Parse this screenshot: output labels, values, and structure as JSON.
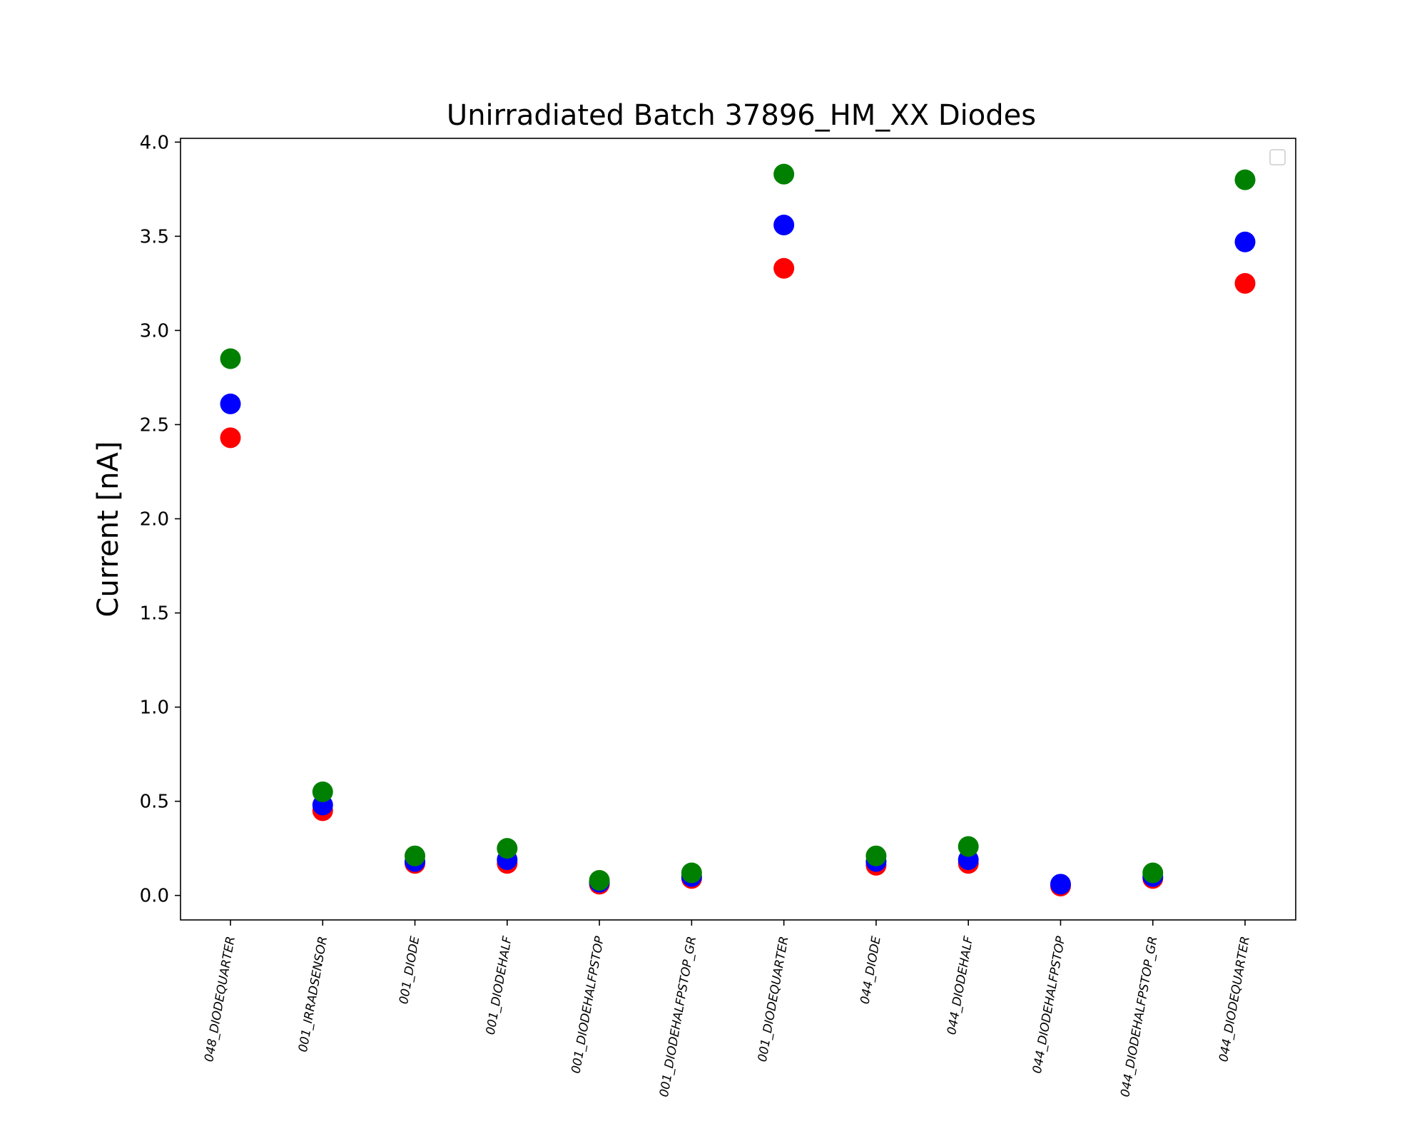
{
  "chart_data": {
    "type": "scatter",
    "title": "Unirradiated Batch 37896_HM_XX Diodes",
    "ylabel": "Current [nA]",
    "xlabel": "",
    "ylim": [
      -0.13,
      4.02
    ],
    "yticks": [
      "0.0",
      "0.5",
      "1.0",
      "1.5",
      "2.0",
      "2.5",
      "3.0",
      "3.5",
      "4.0"
    ],
    "ytick_values": [
      0,
      0.5,
      1.0,
      1.5,
      2.0,
      2.5,
      3.0,
      3.5,
      4.0
    ],
    "grid": false,
    "legend": "top-right (empty)",
    "categories": [
      "048_DIODEQUARTER",
      "001_IRRADSENSOR",
      "001_DIODE",
      "001_DIODEHALF",
      "001_DIODEHALFPSTOP",
      "001_DIODEHALFPSTOP_GR",
      "001_DIODEQUARTER",
      "044_DIODE",
      "044_DIODEHALF",
      "044_DIODEHALFPSTOP",
      "044_DIODEHALFPSTOP_GR",
      "044_DIODEQUARTER"
    ],
    "series": [
      {
        "color": "#ff0000",
        "values": [
          2.43,
          0.45,
          0.17,
          0.17,
          0.06,
          0.09,
          3.33,
          0.16,
          0.17,
          0.05,
          0.09,
          3.25
        ]
      },
      {
        "color": "#0000ff",
        "values": [
          2.61,
          0.48,
          0.18,
          0.19,
          0.07,
          0.1,
          3.56,
          0.18,
          0.19,
          0.06,
          0.1,
          3.47
        ]
      },
      {
        "color": "#008000",
        "values": [
          2.85,
          0.55,
          0.21,
          0.25,
          0.08,
          0.12,
          3.83,
          0.21,
          0.26,
          null,
          0.12,
          3.8
        ]
      }
    ]
  }
}
